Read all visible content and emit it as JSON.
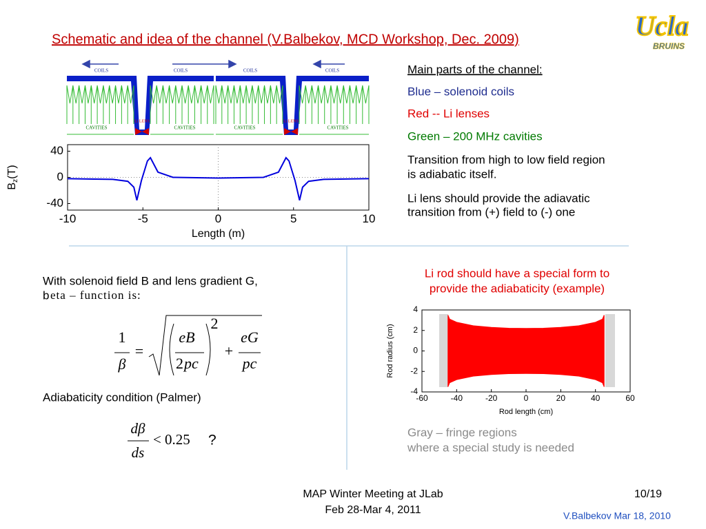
{
  "header": {
    "title": "Schematic and idea of the channel  (V.Balbekov, MCD Workshop, Dec. 2009)"
  },
  "logo": {
    "name": "Ucla",
    "sub": "BRUINS"
  },
  "schematic": {
    "coils": [
      "COILS",
      "COILS",
      "COILS",
      "COILS"
    ],
    "cavities": [
      "CAVITIES",
      "CAVITIES",
      "CAVITIES",
      "CAVITIES"
    ],
    "lenses": [
      "Li LENS",
      "Li LENS"
    ]
  },
  "chart_data": [
    {
      "type": "line",
      "xlabel": "Length (m)",
      "ylabel": {
        "main": "B",
        "sub": "z",
        "unit": "(T)"
      },
      "x": [
        -10,
        -7,
        -6,
        -5.6,
        -5.4,
        -5.3,
        -5.1,
        -4.9,
        -4.7,
        -4.5,
        -4,
        -3,
        0,
        3,
        4,
        4.5,
        4.7,
        4.9,
        5.1,
        5.3,
        5.4,
        5.6,
        6,
        7,
        10
      ],
      "values": [
        -2,
        -3,
        -6,
        -15,
        -35,
        -25,
        -5,
        10,
        25,
        30,
        8,
        0,
        -1,
        0,
        8,
        30,
        25,
        10,
        -5,
        -25,
        -35,
        -15,
        -6,
        -3,
        -2
      ],
      "color": "#0000dd",
      "xlim": [
        -10,
        10
      ],
      "ylim": [
        -50,
        50
      ],
      "xticks": [
        -10,
        -5,
        0,
        5,
        10
      ],
      "yticks": [
        -40,
        0,
        40
      ],
      "zero_lines": true
    },
    {
      "type": "area",
      "xlabel": "Rod length (cm)",
      "ylabel": {
        "main": "Rod radius (cm)"
      },
      "x": [
        -45,
        -44,
        -40,
        -30,
        -20,
        -10,
        0,
        10,
        20,
        30,
        40,
        44,
        45
      ],
      "values": [
        3.5,
        3.1,
        2.8,
        2.45,
        2.3,
        2.22,
        2.2,
        2.22,
        2.3,
        2.45,
        2.8,
        3.1,
        3.5
      ],
      "color": "#ff0000",
      "xlim": [
        -60,
        60
      ],
      "ylim": [
        -4,
        4
      ],
      "xticks": [
        -60,
        -40,
        -20,
        0,
        20,
        40,
        60
      ],
      "yticks": [
        -4,
        -2,
        0,
        2,
        4
      ],
      "zero_lines": false
    }
  ],
  "parts": {
    "heading": "Main parts of the channel:",
    "items": [
      {
        "lines": [
          "Blue – solenoid coils"
        ],
        "color": "#1f2d8f"
      },
      {
        "lines": [
          "Red  -- Li lenses"
        ],
        "color": "#e00000"
      },
      {
        "lines": [
          "Green – 200 MHz cavities"
        ],
        "color": "#007a00"
      },
      {
        "lines": [
          "Transition from high to low field region",
          "is adiabatic itself."
        ],
        "color": "#000000"
      },
      {
        "lines": [
          "Li lens should provide the adiavatic",
          "transition from (+) field to (-) one"
        ],
        "color": "#000000"
      }
    ]
  },
  "left": {
    "intro": "With solenoid field B and lens gradient G,",
    "intro2_b": "b",
    "intro2_rest": "eta – function is:",
    "formula": {
      "one": "1",
      "beta": "β",
      "eq": "=",
      "eB": "eB",
      "two": "2",
      "pc1": "pc",
      "sq": "2",
      "plus": "+",
      "eG": "eG",
      "pc2": "pc"
    },
    "adiabaticity": "Adiabaticity condition (Palmer)",
    "condition": {
      "dbeta": "dβ",
      "ds": "ds",
      "lt": "<",
      "limit": "0.25",
      "q": "?"
    }
  },
  "rod": {
    "title": [
      "Li rod should have a special form to",
      "provide the adiabaticity (example)"
    ],
    "note": [
      "Gray – fringe regions",
      "where a special study is needed"
    ]
  },
  "footer": {
    "meeting": "MAP Winter Meeting at JLab",
    "dates": "Feb 28-Mar 4, 2011",
    "page": "10/19",
    "author": "V.Balbekov Mar 18, 2010"
  }
}
